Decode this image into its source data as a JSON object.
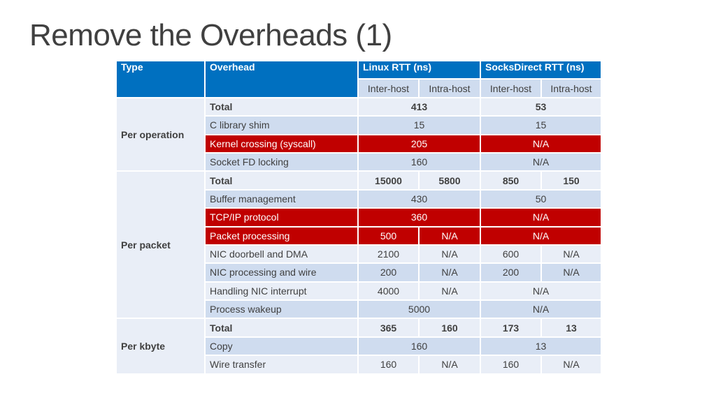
{
  "title": "Remove the Overheads (1)",
  "header": {
    "type": "Type",
    "overhead": "Overhead",
    "linux": "Linux RTT (ns)",
    "socks": "SocksDirect RTT (ns)",
    "inter": "Inter-host",
    "intra": "Intra-host"
  },
  "sections": [
    {
      "type": "Per operation",
      "rows": [
        {
          "name": "Total",
          "linux": "413",
          "socks": "53"
        },
        {
          "name": "C library shim",
          "linux": "15",
          "socks": "15"
        },
        {
          "name": "Kernel crossing (syscall)",
          "linux": "205",
          "socks": "N/A"
        },
        {
          "name": "Socket FD locking",
          "linux": "160",
          "socks": "N/A"
        }
      ]
    },
    {
      "type": "Per packet",
      "rows": [
        {
          "name": "Total",
          "linux_inter": "15000",
          "linux_intra": "5800",
          "socks_inter": "850",
          "socks_intra": "150"
        },
        {
          "name": "Buffer management",
          "linux": "430",
          "socks": "50"
        },
        {
          "name": "TCP/IP protocol",
          "linux": "360",
          "socks": "N/A"
        },
        {
          "name": "Packet processing",
          "linux_inter": "500",
          "linux_intra": "N/A",
          "socks": "N/A"
        },
        {
          "name": "NIC doorbell and DMA",
          "linux_inter": "2100",
          "linux_intra": "N/A",
          "socks_inter": "600",
          "socks_intra": "N/A"
        },
        {
          "name": "NIC processing and wire",
          "linux_inter": "200",
          "linux_intra": "N/A",
          "socks_inter": "200",
          "socks_intra": "N/A"
        },
        {
          "name": "Handling NIC interrupt",
          "linux_inter": "4000",
          "linux_intra": "N/A",
          "socks": "N/A"
        },
        {
          "name": "Process wakeup",
          "linux": "5000",
          "socks": "N/A"
        }
      ]
    },
    {
      "type": "Per kbyte",
      "rows": [
        {
          "name": "Total",
          "linux_inter": "365",
          "linux_intra": "160",
          "socks_inter": "173",
          "socks_intra": "13"
        },
        {
          "name": "Copy",
          "linux": "160",
          "socks": "13"
        },
        {
          "name": "Wire transfer",
          "linux_inter": "160",
          "linux_intra": "N/A",
          "socks_inter": "160",
          "socks_intra": "N/A"
        }
      ]
    }
  ],
  "colors": {
    "header_blue": "#0070c0",
    "row_light": "#e9eef7",
    "row_dark": "#cfdcef",
    "highlight_red": "#c00000",
    "title_text": "#404040"
  }
}
